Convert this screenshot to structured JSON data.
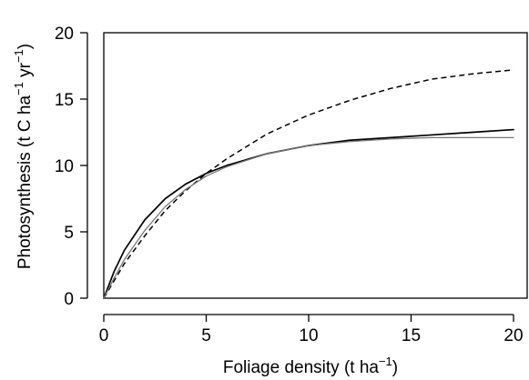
{
  "chart_data": {
    "type": "line",
    "title": "",
    "xlabel": {
      "main": "Foliage density (t ha",
      "sup": "−1",
      "close": ")"
    },
    "ylabel": {
      "part1": "Photosynthesis (t C ha",
      "sup1": "−1",
      "part2": " yr",
      "sup2": "−1",
      "close": ")"
    },
    "xlim": [
      0,
      20
    ],
    "ylim": [
      0,
      20
    ],
    "x_ticks": [
      0,
      5,
      10,
      15,
      20
    ],
    "y_ticks": [
      0,
      5,
      10,
      15,
      20
    ],
    "grid": false,
    "series": [
      {
        "style": "dashed",
        "color": "#000000",
        "x": [
          0,
          1,
          2,
          3,
          4,
          5,
          6,
          8,
          10,
          12,
          14,
          16,
          18,
          20
        ],
        "y": [
          0,
          2.6,
          4.7,
          6.6,
          8.1,
          9.4,
          10.5,
          12.4,
          13.8,
          14.9,
          15.8,
          16.5,
          16.9,
          17.2
        ]
      },
      {
        "style": "solid",
        "color": "#000000",
        "x": [
          0,
          0.5,
          1,
          2,
          3,
          4,
          5,
          6,
          8,
          10,
          12,
          14,
          16,
          18,
          20
        ],
        "y": [
          0,
          2.0,
          3.6,
          5.9,
          7.5,
          8.6,
          9.4,
          10.0,
          10.9,
          11.5,
          11.9,
          12.1,
          12.3,
          12.5,
          12.7
        ]
      },
      {
        "style": "solid-thin",
        "color": "#777777",
        "x": [
          0,
          0.5,
          1,
          2,
          3,
          4,
          5,
          6,
          8,
          10,
          12,
          14,
          16,
          18,
          20
        ],
        "y": [
          0,
          1.5,
          2.9,
          5.1,
          6.9,
          8.2,
          9.2,
          9.9,
          10.9,
          11.5,
          11.8,
          12.0,
          12.1,
          12.1,
          12.1
        ]
      }
    ]
  }
}
